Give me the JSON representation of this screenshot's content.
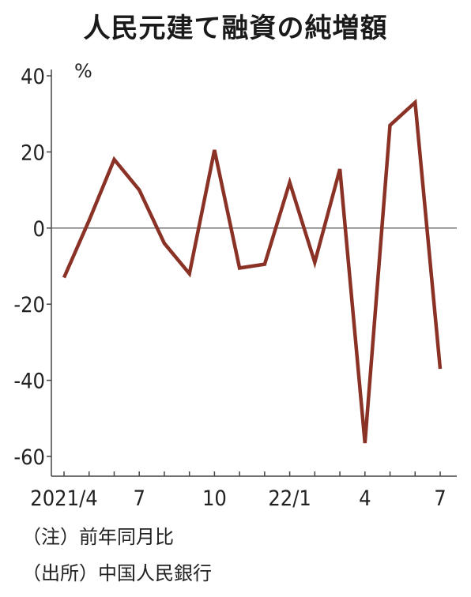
{
  "title": "人民元建て融資の純増額",
  "notes": {
    "note": "（注）前年同月比",
    "source": "（出所）中国人民銀行"
  },
  "colors": {
    "line": "#8b3226",
    "axis": "#444444",
    "zero_line": "#666666"
  },
  "chart_data": {
    "type": "line",
    "title": "人民元建て融資の純増額",
    "ylabel": "%",
    "xlabel": "",
    "ylim": [
      -60,
      40
    ],
    "yticks": [
      "40",
      "20",
      "0",
      "-20",
      "-40",
      "-60"
    ],
    "ytick_values": [
      40,
      20,
      0,
      -20,
      -40,
      -60
    ],
    "grid": false,
    "zero_line": true,
    "x": [
      "2021/4",
      "2021/5",
      "2021/6",
      "2021/7",
      "2021/8",
      "2021/9",
      "2021/10",
      "2021/11",
      "2021/12",
      "2022/1",
      "2022/2",
      "2022/3",
      "2022/4",
      "2022/5",
      "2022/6",
      "2022/7"
    ],
    "xtick_labels": [
      "2021/4",
      "",
      "",
      "7",
      "",
      "",
      "10",
      "",
      "",
      "22/1",
      "",
      "",
      "4",
      "",
      "",
      "7"
    ],
    "series": [
      {
        "name": "",
        "values": [
          -13,
          2,
          18,
          10,
          -4,
          -12,
          20.5,
          -10.5,
          -9.5,
          12,
          -9,
          15.5,
          -56.5,
          27,
          33,
          -37
        ]
      }
    ]
  }
}
